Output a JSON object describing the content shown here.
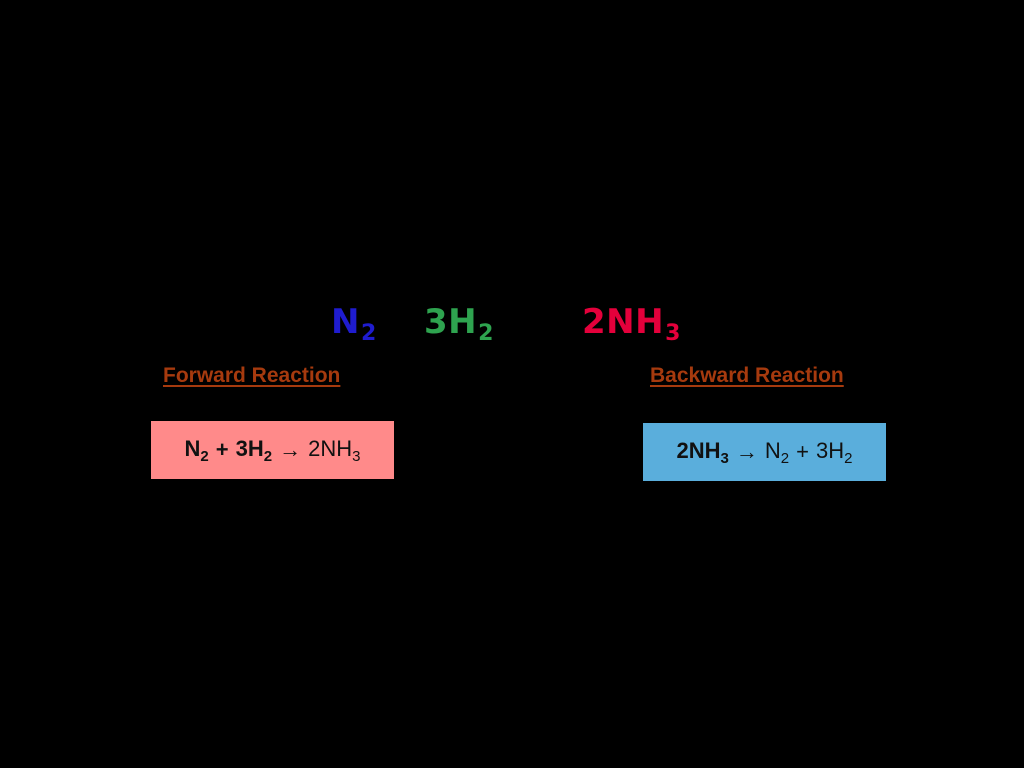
{
  "equation": {
    "reactant_1": {
      "coef": "",
      "symbol": "N",
      "sub": "2",
      "color": "#1f1ccf"
    },
    "reactant_2": {
      "coef": "3",
      "symbol": "H",
      "sub": "2",
      "color": "#2ea34f"
    },
    "product": {
      "coef": "2",
      "symbol": "NH",
      "sub": "3",
      "color": "#e4003b"
    }
  },
  "forward": {
    "heading": "Forward Reaction",
    "box_color": "#ff8a8a",
    "lhs": {
      "a_symbol": "N",
      "a_sub": "2",
      "plus": "+",
      "b_coef_symbol": "3H",
      "b_sub": "2"
    },
    "arrow": "→",
    "rhs": {
      "symbol": "2NH",
      "sub": "3"
    }
  },
  "backward": {
    "heading": "Backward Reaction",
    "box_color": "#5aaedc",
    "lhs": {
      "symbol": "2NH",
      "sub": "3"
    },
    "arrow": "→",
    "rhs": {
      "a_symbol": "N",
      "a_sub": "2",
      "plus": "+",
      "b_coef_symbol": "3H",
      "b_sub": "2"
    }
  },
  "colors": {
    "background": "#000000",
    "heading": "#a63a0e"
  }
}
